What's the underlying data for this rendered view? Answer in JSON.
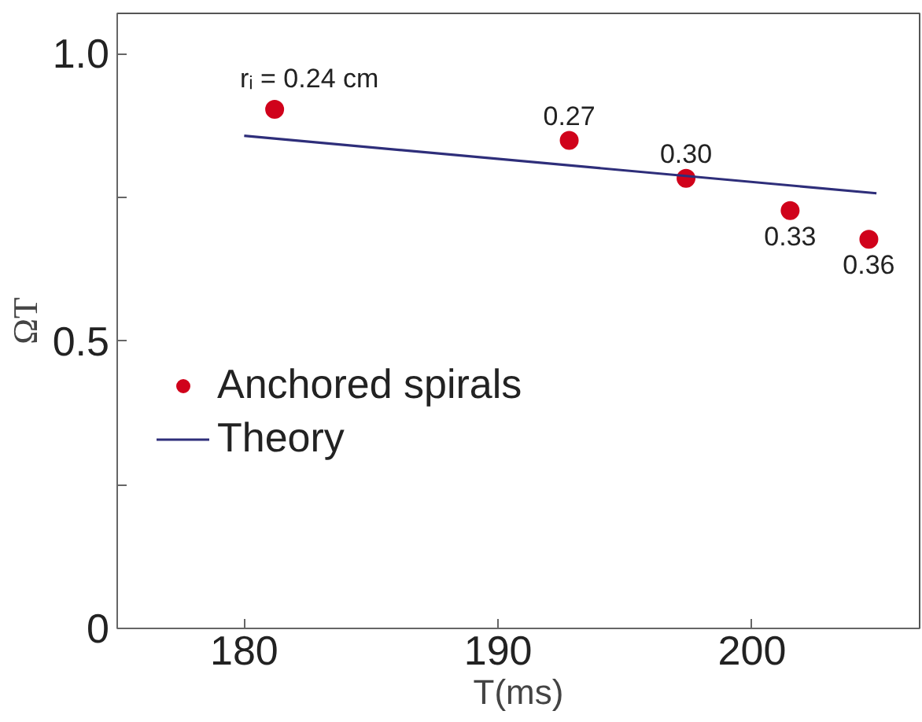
{
  "chart_data": {
    "type": "scatter",
    "xlabel": "T(ms)",
    "ylabel": "ΩT",
    "xlim": [
      175,
      206.6
    ],
    "ylim": [
      0,
      1.07
    ],
    "xticks": [
      180,
      190,
      200
    ],
    "yticks": [
      0,
      {
        "value": 0.25,
        "label": null
      },
      0.5,
      {
        "value": 0.75,
        "label": null
      },
      {
        "value": 1.0,
        "label": "1.0"
      }
    ],
    "series": [
      {
        "name": "Anchored spirals",
        "color": "#d0021b",
        "marker": "circle",
        "x": [
          181.2,
          192.8,
          197.4,
          201.5,
          204.6
        ],
        "values": [
          0.903,
          0.849,
          0.783,
          0.727,
          0.677
        ]
      },
      {
        "name": "Theory",
        "type": "line",
        "color": "#2e2e7a",
        "x": [
          180,
          204.9
        ],
        "values": [
          0.857,
          0.757
        ]
      }
    ],
    "annotations": [
      {
        "text": "rᵢ = 0.24 cm",
        "x": 181.2,
        "y": 0.903
      },
      {
        "text": "0.27",
        "x": 192.8,
        "y": 0.849
      },
      {
        "text": "0.30",
        "x": 197.4,
        "y": 0.783
      },
      {
        "text": "0.33",
        "x": 201.5,
        "y": 0.727
      },
      {
        "text": "0.36",
        "x": 204.6,
        "y": 0.677
      }
    ],
    "grid": false,
    "legend": "left"
  }
}
